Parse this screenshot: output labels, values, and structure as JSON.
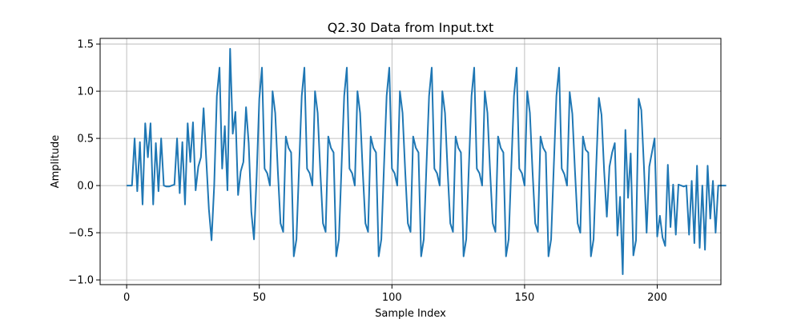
{
  "chart_data": {
    "type": "line",
    "title": "Q2.30 Data from Input.txt",
    "xlabel": "Sample Index",
    "ylabel": "Amplitude",
    "xlim": [
      -10,
      224
    ],
    "ylim": [
      -1.05,
      1.56
    ],
    "xticks": [
      0,
      50,
      100,
      150,
      200
    ],
    "yticks": [
      -1.0,
      -0.5,
      0.0,
      0.5,
      1.0,
      1.5
    ],
    "xtick_labels": [
      "0",
      "50",
      "100",
      "150",
      "200"
    ],
    "ytick_labels": [
      "−1.0",
      "−0.5",
      "0.0",
      "0.5",
      "1.0",
      "1.5"
    ],
    "grid": true,
    "color": "#1f77b4",
    "series": [
      {
        "values": [
          0,
          0,
          0,
          0.5,
          -0.06,
          0.46,
          -0.2,
          0.66,
          0.3,
          0.66,
          -0.2,
          0.45,
          -0.06,
          0.5,
          0,
          -0.01,
          -0.01,
          0,
          0.01,
          0.5,
          -0.08,
          0.46,
          -0.2,
          0.66,
          0.25,
          0.67,
          -0.05,
          0.2,
          0.3,
          0.82,
          0.28,
          -0.25,
          -0.58,
          0,
          0.95,
          1.25,
          0.18,
          0.63,
          -0.05,
          1.45,
          0.55,
          0.78,
          -0.1,
          0.15,
          0.25,
          0.83,
          0.45,
          -0.28,
          -0.57,
          0.1,
          0.92,
          1.25,
          0.18,
          0.13,
          0,
          1,
          0.77,
          0.15,
          -0.4,
          -0.49,
          0.52,
          0.4,
          0.35,
          -0.75,
          -0.57,
          0.2,
          0.95,
          1.25,
          0.18,
          0.13,
          0,
          1,
          0.77,
          0.15,
          -0.4,
          -0.49,
          0.52,
          0.4,
          0.35,
          -0.75,
          -0.57,
          0.2,
          0.95,
          1.25,
          0.18,
          0.13,
          0,
          1,
          0.77,
          0.15,
          -0.4,
          -0.49,
          0.52,
          0.4,
          0.35,
          -0.75,
          -0.57,
          0.2,
          0.95,
          1.25,
          0.18,
          0.13,
          0,
          1,
          0.77,
          0.15,
          -0.4,
          -0.49,
          0.52,
          0.4,
          0.35,
          -0.75,
          -0.57,
          0.2,
          0.95,
          1.25,
          0.18,
          0.13,
          0,
          1,
          0.77,
          0.15,
          -0.4,
          -0.49,
          0.52,
          0.4,
          0.35,
          -0.75,
          -0.57,
          0.2,
          0.95,
          1.25,
          0.18,
          0.13,
          0,
          1,
          0.77,
          0.15,
          -0.4,
          -0.49,
          0.52,
          0.4,
          0.35,
          -0.75,
          -0.57,
          0.2,
          0.95,
          1.25,
          0.18,
          0.13,
          0,
          1,
          0.77,
          0.15,
          -0.4,
          -0.49,
          0.52,
          0.4,
          0.35,
          -0.75,
          -0.57,
          0.2,
          0.95,
          1.25,
          0.18,
          0.12,
          0,
          0.99,
          0.76,
          0.15,
          -0.4,
          -0.5,
          0.52,
          0.38,
          0.35,
          -0.75,
          -0.57,
          0.2,
          0.93,
          0.75,
          0.15,
          -0.33,
          0.2,
          0.35,
          0.45,
          -0.53,
          -0.12,
          -0.94,
          0.59,
          -0.13,
          0.34,
          -0.74,
          -0.58,
          0.92,
          0.8,
          0.2,
          -0.5,
          0.2,
          0.35,
          0.5,
          -0.54,
          -0.32,
          -0.55,
          -0.64,
          0.22,
          -0.44,
          0.01,
          -0.52,
          0.01,
          0,
          -0.01,
          0,
          -0.52,
          0.05,
          -0.61,
          0.21,
          -0.66,
          0,
          -0.68,
          0.21,
          -0.35,
          0.05,
          -0.5,
          0,
          0,
          0,
          0
        ]
      }
    ]
  }
}
